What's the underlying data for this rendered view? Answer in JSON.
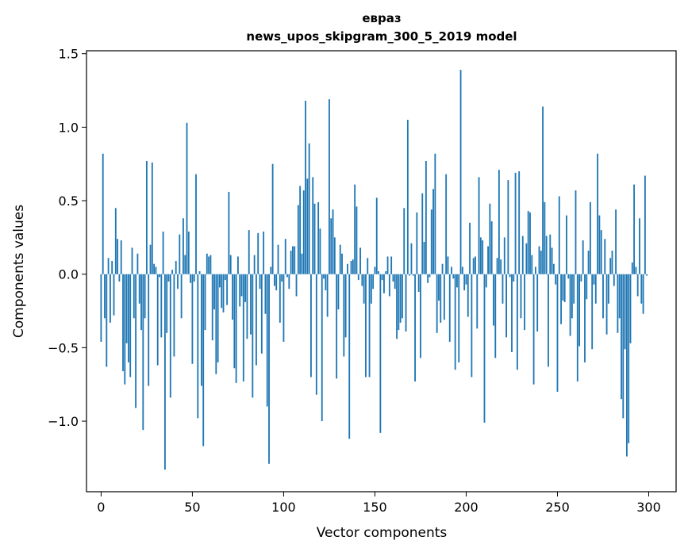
{
  "chart_data": {
    "type": "bar",
    "title": "евраз",
    "subtitle": "news_upos_skipgram_300_5_2019 model",
    "xlabel": "Vector components",
    "ylabel": "Components values",
    "xlim": [
      -8,
      315
    ],
    "ylim": [
      -1.48,
      1.52
    ],
    "xticks": [
      0,
      50,
      100,
      150,
      200,
      250,
      300
    ],
    "yticks": [
      1.5,
      1.0,
      0.5,
      0.0,
      -0.5,
      -1.0
    ],
    "ytick_labels": [
      "1.5",
      "1.0",
      "0.5",
      "0.0",
      "−0.5",
      "−1.0"
    ],
    "bar_color": "#1f77b4",
    "x": "indices 0..299",
    "values": [
      -0.46,
      0.82,
      -0.3,
      -0.63,
      0.11,
      -0.33,
      0.09,
      -0.28,
      0.45,
      0.24,
      -0.05,
      0.23,
      -0.66,
      -0.75,
      -0.47,
      -0.6,
      -0.7,
      0.18,
      -0.3,
      -0.91,
      0.14,
      -0.2,
      -0.38,
      -1.06,
      -0.3,
      0.77,
      -0.76,
      0.2,
      0.76,
      0.07,
      0.05,
      -0.62,
      -0.02,
      -0.43,
      0.29,
      -1.33,
      -0.4,
      -0.05,
      -0.84,
      0.03,
      -0.56,
      0.09,
      -0.1,
      0.27,
      -0.3,
      0.38,
      0.13,
      1.03,
      0.29,
      -0.06,
      -0.61,
      -0.05,
      0.68,
      -0.98,
      0.02,
      -0.76,
      -1.17,
      -0.38,
      0.14,
      0.12,
      0.13,
      -0.45,
      -0.24,
      -0.68,
      -0.6,
      -0.09,
      -0.23,
      -0.26,
      -0.04,
      -0.21,
      0.56,
      0.13,
      -0.31,
      -0.64,
      -0.74,
      0.12,
      -0.22,
      -0.15,
      -0.73,
      -0.19,
      -0.44,
      0.3,
      -0.41,
      -0.84,
      0.13,
      -0.62,
      0.28,
      -0.1,
      -0.54,
      0.29,
      -0.27,
      -0.9,
      -1.29,
      0.05,
      0.75,
      -0.08,
      -0.11,
      0.2,
      -0.33,
      -0.05,
      -0.46,
      0.24,
      -0.02,
      -0.1,
      0.16,
      0.19,
      0.19,
      -0.15,
      0.47,
      0.6,
      0.14,
      0.57,
      1.18,
      0.65,
      0.89,
      -0.7,
      0.66,
      0.48,
      -0.82,
      0.49,
      0.31,
      -1.0,
      -0.03,
      -0.11,
      -0.29,
      1.19,
      0.38,
      0.44,
      0.25,
      -0.71,
      -0.24,
      0.2,
      0.14,
      -0.56,
      -0.43,
      0.07,
      -1.12,
      0.09,
      0.1,
      0.61,
      0.46,
      -0.04,
      0.18,
      -0.08,
      -0.2,
      -0.7,
      0.11,
      -0.7,
      -0.2,
      -0.1,
      0.05,
      0.52,
      0.02,
      -1.08,
      -0.04,
      -0.13,
      0.02,
      0.12,
      -0.15,
      0.12,
      -0.05,
      -0.1,
      -0.44,
      -0.38,
      -0.33,
      -0.3,
      0.45,
      -0.39,
      1.05,
      -0.01,
      0.21,
      -0.01,
      -0.73,
      0.42,
      -0.12,
      -0.57,
      0.55,
      0.22,
      0.77,
      -0.06,
      -0.02,
      0.44,
      0.58,
      0.82,
      -0.4,
      -0.18,
      -0.33,
      0.07,
      -0.31,
      0.68,
      0.12,
      -0.46,
      0.05,
      -0.03,
      -0.65,
      -0.09,
      -0.6,
      1.39,
      0.05,
      -0.11,
      -0.07,
      -0.29,
      0.35,
      -0.7,
      0.11,
      0.12,
      -0.37,
      0.66,
      0.25,
      0.23,
      -1.01,
      -0.09,
      0.19,
      0.48,
      0.36,
      -0.35,
      -0.57,
      0.11,
      0.71,
      0.1,
      -0.2,
      0.25,
      -0.43,
      0.64,
      -0.02,
      -0.53,
      -0.05,
      0.69,
      -0.65,
      0.7,
      -0.3,
      0.26,
      -0.38,
      0.21,
      0.43,
      0.42,
      0.13,
      -0.75,
      0.05,
      -0.39,
      0.19,
      0.16,
      1.14,
      0.49,
      0.26,
      -0.63,
      0.27,
      0.18,
      0.07,
      -0.07,
      -0.8,
      0.53,
      -0.34,
      -0.18,
      -0.19,
      0.4,
      -0.03,
      -0.42,
      -0.3,
      -0.2,
      0.57,
      -0.73,
      -0.49,
      -0.05,
      0.23,
      -0.6,
      -0.17,
      0.16,
      0.49,
      -0.51,
      -0.07,
      -0.2,
      0.82,
      0.4,
      0.3,
      -0.3,
      0.24,
      -0.41,
      -0.2,
      0.11,
      0.16,
      -0.08,
      0.44,
      -0.4,
      -0.3,
      -0.85,
      -0.98,
      -0.51,
      -1.24,
      -1.15,
      -0.47,
      0.08,
      0.61,
      0.05,
      -0.15,
      0.38,
      -0.2,
      -0.27,
      0.67,
      -0.01
    ]
  }
}
